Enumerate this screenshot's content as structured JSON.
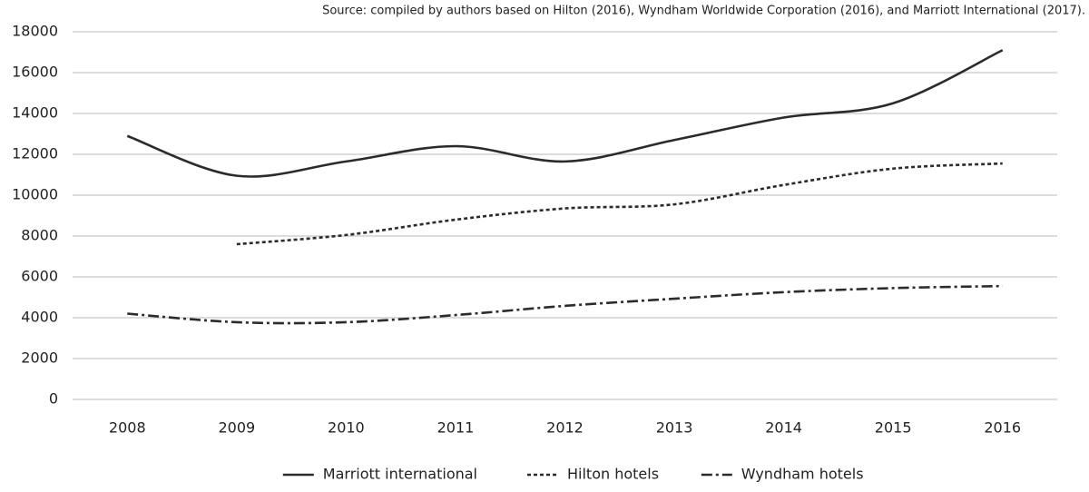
{
  "chart_data": {
    "type": "line",
    "note": "Source: compiled by authors based on Hilton (2016), Wyndham Worldwide Corporation (2016), and Marriott International (2017).",
    "categories": [
      "2008",
      "2009",
      "2010",
      "2011",
      "2012",
      "2013",
      "2014",
      "2015",
      "2016"
    ],
    "series": [
      {
        "name": "Marriott international",
        "color": "#2b2b2b",
        "dash": "solid",
        "values": [
          12900,
          10950,
          11650,
          12400,
          11650,
          12700,
          13800,
          14500,
          17100
        ]
      },
      {
        "name": "Hilton hotels",
        "color": "#2b2b2b",
        "dash": "dashed",
        "values": [
          null,
          7600,
          8050,
          8800,
          9350,
          9550,
          10500,
          11300,
          11550
        ]
      },
      {
        "name": "Wyndham hotels",
        "color": "#2b2b2b",
        "dash": "dashdot",
        "values": [
          4200,
          3780,
          3780,
          4130,
          4580,
          4930,
          5250,
          5450,
          5550
        ]
      }
    ],
    "ylim": [
      0,
      18000
    ],
    "yticks": [
      0,
      2000,
      4000,
      6000,
      8000,
      10000,
      12000,
      14000,
      16000,
      18000
    ],
    "grid": true,
    "legend": "bottom"
  }
}
